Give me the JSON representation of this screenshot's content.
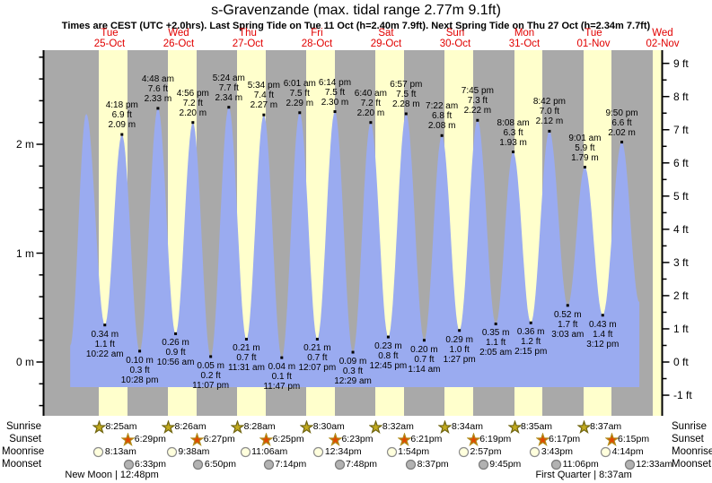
{
  "header": {
    "title": "s-Gravenzande (max. tidal range 2.77m 9.1ft)",
    "subtitle": "Times are CEST (UTC +2.0hrs). Last Spring Tide on Tue 11 Oct (h=2.40m 7.9ft). Next Spring Tide on Thu 27 Oct (h=2.34m 7.7ft)"
  },
  "chart_data": {
    "type": "area",
    "title": "s-Gravenzande (max. tidal range 2.77m 9.1ft)",
    "x_axis": {
      "unit": "days"
    },
    "days": [
      {
        "weekday": "Tue",
        "date": "25-Oct"
      },
      {
        "weekday": "Wed",
        "date": "26-Oct"
      },
      {
        "weekday": "Thu",
        "date": "27-Oct"
      },
      {
        "weekday": "Fri",
        "date": "28-Oct"
      },
      {
        "weekday": "Sat",
        "date": "29-Oct"
      },
      {
        "weekday": "Sun",
        "date": "30-Oct"
      },
      {
        "weekday": "Mon",
        "date": "31-Oct"
      },
      {
        "weekday": "Tue",
        "date": "01-Nov"
      },
      {
        "weekday": "Wed",
        "date": "02-Nov"
      }
    ],
    "y_axis_left": {
      "unit": "m",
      "values": [
        2,
        1,
        0
      ],
      "labels": [
        "2 m",
        "1 m",
        "0 m"
      ],
      "range": [
        -0.49,
        2.86
      ]
    },
    "y_axis_right": {
      "unit": "ft",
      "values": [
        9,
        8,
        7,
        6,
        5,
        4,
        3,
        2,
        1,
        0,
        -1
      ],
      "labels": [
        "9 ft",
        "8 ft",
        "7 ft",
        "6 ft",
        "5 ft",
        "4 ft",
        "3 ft",
        "2 ft",
        "1 ft",
        "0 ft",
        "-1 ft"
      ]
    },
    "tide_events": [
      {
        "day": -1,
        "time": "10:20 pm",
        "type": "low",
        "m": 0.15,
        "labeled": false
      },
      {
        "day": 0,
        "time": "3:55 am",
        "type": "high",
        "m": 2.28,
        "labeled": false
      },
      {
        "day": 0,
        "time": "10:22 am",
        "type": "low",
        "m": 0.34,
        "ft": 1.1,
        "labeled": true
      },
      {
        "day": 0,
        "time": "4:18 pm",
        "type": "high",
        "m": 2.09,
        "ft": 6.9,
        "labeled": true
      },
      {
        "day": 0,
        "time": "10:28 pm",
        "type": "low",
        "m": 0.1,
        "ft": 0.3,
        "labeled": true
      },
      {
        "day": 1,
        "time": "4:48 am",
        "type": "high",
        "m": 2.33,
        "ft": 7.6,
        "labeled": true
      },
      {
        "day": 1,
        "time": "10:56 am",
        "type": "low",
        "m": 0.26,
        "ft": 0.9,
        "labeled": true
      },
      {
        "day": 1,
        "time": "4:56 pm",
        "type": "high",
        "m": 2.2,
        "ft": 7.2,
        "labeled": true
      },
      {
        "day": 1,
        "time": "11:07 pm",
        "type": "low",
        "m": 0.05,
        "ft": 0.2,
        "labeled": true
      },
      {
        "day": 2,
        "time": "5:24 am",
        "type": "high",
        "m": 2.34,
        "ft": 7.7,
        "labeled": true
      },
      {
        "day": 2,
        "time": "11:31 am",
        "type": "low",
        "m": 0.21,
        "ft": 0.7,
        "labeled": true
      },
      {
        "day": 2,
        "time": "5:34 pm",
        "type": "high",
        "m": 2.27,
        "ft": 7.4,
        "labeled": true
      },
      {
        "day": 2,
        "time": "11:47 pm",
        "type": "low",
        "m": 0.04,
        "ft": 0.1,
        "labeled": true
      },
      {
        "day": 3,
        "time": "6:01 am",
        "type": "high",
        "m": 2.29,
        "ft": 7.5,
        "labeled": true
      },
      {
        "day": 3,
        "time": "12:07 pm",
        "type": "low",
        "m": 0.21,
        "ft": 0.7,
        "labeled": true
      },
      {
        "day": 3,
        "time": "6:14 pm",
        "type": "high",
        "m": 2.3,
        "ft": 7.5,
        "labeled": true
      },
      {
        "day": 4,
        "time": "12:29 am",
        "type": "low",
        "m": 0.09,
        "ft": 0.3,
        "labeled": true
      },
      {
        "day": 4,
        "time": "6:40 am",
        "type": "high",
        "m": 2.2,
        "ft": 7.2,
        "labeled": true
      },
      {
        "day": 4,
        "time": "12:45 pm",
        "type": "low",
        "m": 0.23,
        "ft": 0.8,
        "labeled": true
      },
      {
        "day": 4,
        "time": "6:57 pm",
        "type": "high",
        "m": 2.28,
        "ft": 7.5,
        "labeled": true
      },
      {
        "day": 5,
        "time": "1:14 am",
        "type": "low",
        "m": 0.2,
        "ft": 0.7,
        "labeled": true
      },
      {
        "day": 5,
        "time": "7:22 am",
        "type": "high",
        "m": 2.08,
        "ft": 6.8,
        "labeled": true
      },
      {
        "day": 5,
        "time": "1:27 pm",
        "type": "low",
        "m": 0.29,
        "ft": 1.0,
        "labeled": true
      },
      {
        "day": 5,
        "time": "7:45 pm",
        "type": "high",
        "m": 2.22,
        "ft": 7.3,
        "labeled": true
      },
      {
        "day": 6,
        "time": "2:05 am",
        "type": "low",
        "m": 0.35,
        "ft": 1.1,
        "labeled": true
      },
      {
        "day": 6,
        "time": "8:08 am",
        "type": "high",
        "m": 1.93,
        "ft": 6.3,
        "labeled": true
      },
      {
        "day": 6,
        "time": "2:15 pm",
        "type": "low",
        "m": 0.36,
        "ft": 1.2,
        "labeled": true
      },
      {
        "day": 6,
        "time": "8:42 pm",
        "type": "high",
        "m": 2.12,
        "ft": 7.0,
        "labeled": true
      },
      {
        "day": 7,
        "time": "3:03 am",
        "type": "low",
        "m": 0.52,
        "ft": 1.7,
        "labeled": true
      },
      {
        "day": 7,
        "time": "9:01 am",
        "type": "high",
        "m": 1.79,
        "ft": 5.9,
        "labeled": true
      },
      {
        "day": 7,
        "time": "3:12 pm",
        "type": "low",
        "m": 0.43,
        "ft": 1.4,
        "labeled": true
      },
      {
        "day": 7,
        "time": "9:50 pm",
        "type": "high",
        "m": 2.02,
        "ft": 6.6,
        "labeled": true
      },
      {
        "day": 8,
        "time": "3:55 am",
        "type": "low",
        "m": 0.55,
        "labeled": false
      }
    ],
    "sun_moon": {
      "rows": [
        {
          "name": "Sunrise",
          "icon": "sunrise-star",
          "entries": [
            {
              "day": 0,
              "time": "8:25am"
            },
            {
              "day": 1,
              "time": "8:26am"
            },
            {
              "day": 2,
              "time": "8:28am"
            },
            {
              "day": 3,
              "time": "8:30am"
            },
            {
              "day": 4,
              "time": "8:32am"
            },
            {
              "day": 5,
              "time": "8:34am"
            },
            {
              "day": 6,
              "time": "8:35am"
            },
            {
              "day": 7,
              "time": "8:37am"
            }
          ]
        },
        {
          "name": "Sunset",
          "icon": "sunset-star",
          "entries": [
            {
              "day": 0,
              "time": "6:29pm"
            },
            {
              "day": 1,
              "time": "6:27pm"
            },
            {
              "day": 2,
              "time": "6:25pm"
            },
            {
              "day": 3,
              "time": "6:23pm"
            },
            {
              "day": 4,
              "time": "6:21pm"
            },
            {
              "day": 5,
              "time": "6:19pm"
            },
            {
              "day": 6,
              "time": "6:17pm"
            },
            {
              "day": 7,
              "time": "6:15pm"
            }
          ]
        },
        {
          "name": "Moonrise",
          "icon": "moonrise-circle",
          "entries": [
            {
              "day": 0,
              "time": "8:13am"
            },
            {
              "day": 1,
              "time": "9:38am"
            },
            {
              "day": 2,
              "time": "11:06am"
            },
            {
              "day": 3,
              "time": "12:34pm"
            },
            {
              "day": 4,
              "time": "1:54pm"
            },
            {
              "day": 5,
              "time": "2:57pm"
            },
            {
              "day": 6,
              "time": "3:43pm"
            },
            {
              "day": 7,
              "time": "4:14pm"
            }
          ]
        },
        {
          "name": "Moonset",
          "icon": "moonset-circle",
          "entries": [
            {
              "day": 0,
              "time": "6:33pm"
            },
            {
              "day": 1,
              "time": "6:50pm"
            },
            {
              "day": 2,
              "time": "7:14pm"
            },
            {
              "day": 3,
              "time": "7:48pm"
            },
            {
              "day": 4,
              "time": "8:37pm"
            },
            {
              "day": 5,
              "time": "9:45pm"
            },
            {
              "day": 6,
              "time": "11:06pm"
            },
            {
              "day": 8,
              "time": "12:33am"
            }
          ]
        }
      ]
    },
    "moon_phases": [
      {
        "label": "New Moon",
        "time": "12:48pm",
        "day": 0
      },
      {
        "label": "First Quarter",
        "time": "8:37am",
        "day": 7
      }
    ]
  },
  "colors": {
    "day_band": "#ffffcc",
    "night_band": "#a9a9a9",
    "tide_fill": "#9aabf0",
    "heading_red": "#e10000",
    "axis": "#000000",
    "sunrise_star_fill": "#c2aa1e",
    "sunrise_star_stroke": "#6f6410",
    "sunset_star_fill": "#e04a00",
    "sunset_star_stroke": "#b08c1a",
    "moonrise_fill": "#ffffdd",
    "moonrise_stroke": "#8c8c8c",
    "moonset_fill": "#b2b2b2",
    "moonset_stroke": "#7a7a7a"
  }
}
